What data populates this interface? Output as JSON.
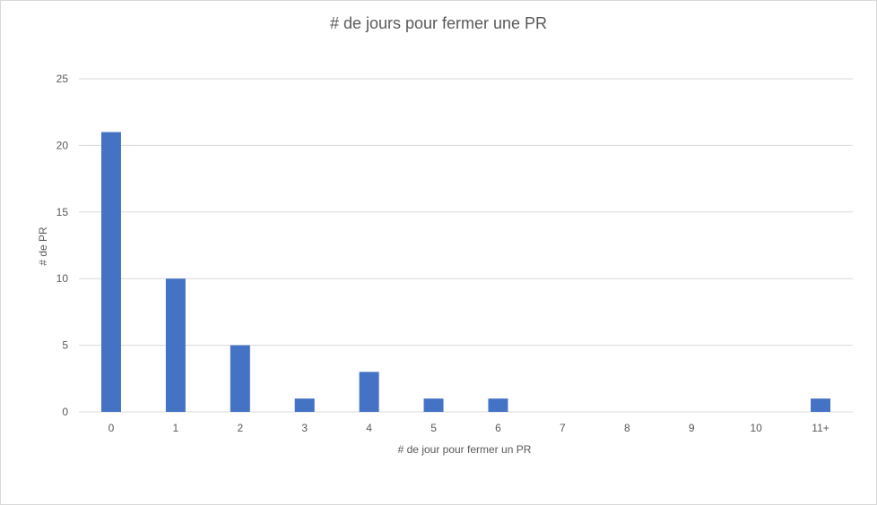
{
  "chart_data": {
    "type": "bar",
    "title": "# de jours pour fermer une PR",
    "xlabel": "# de jour pour fermer un PR",
    "ylabel": "# de PR",
    "categories": [
      "0",
      "1",
      "2",
      "3",
      "4",
      "5",
      "6",
      "7",
      "8",
      "9",
      "10",
      "11+"
    ],
    "values": [
      21,
      10,
      5,
      1,
      3,
      1,
      1,
      0,
      0,
      0,
      0,
      1
    ],
    "ylim": [
      0,
      25
    ],
    "yticks": [
      0,
      5,
      10,
      15,
      20,
      25
    ],
    "grid": true,
    "legend": "none",
    "bar_color": "#4472C4",
    "gridline_color": "#d9d9d9"
  }
}
